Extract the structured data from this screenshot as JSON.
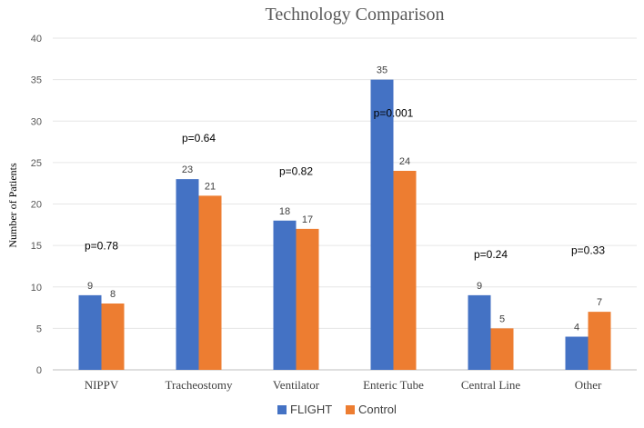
{
  "chart_data": {
    "type": "bar",
    "title": "Technology Comparison",
    "xlabel": "",
    "ylabel": "Number of Patients",
    "ylim": [
      0,
      40
    ],
    "yticks": [
      "0",
      "5",
      "10",
      "15",
      "20",
      "25",
      "30",
      "35",
      "40"
    ],
    "grid": true,
    "legend_position": "bottom",
    "categories": [
      "NIPPV",
      "Tracheostomy",
      "Ventilator",
      "Enteric Tube",
      "Central Line",
      "Other"
    ],
    "series": [
      {
        "name": "FLIGHT",
        "color": "#4472C4",
        "values": [
          9,
          23,
          18,
          35,
          9,
          4
        ],
        "labels": [
          "9",
          "23",
          "18",
          "35",
          "9",
          "4"
        ]
      },
      {
        "name": "Control",
        "color": "#ED7D31",
        "values": [
          8,
          21,
          17,
          24,
          5,
          7
        ],
        "labels": [
          "8",
          "21",
          "17",
          "24",
          "5",
          "7"
        ]
      }
    ],
    "annotations": [
      {
        "text": "p=0.78",
        "category": "NIPPV",
        "y": 14.5
      },
      {
        "text": "p=0.64",
        "category": "Tracheostomy",
        "y": 27.5
      },
      {
        "text": "p=0.82",
        "category": "Ventilator",
        "y": 23.5
      },
      {
        "text": "p=0.001",
        "category": "Enteric Tube",
        "y": 30.5
      },
      {
        "text": "p=0.24",
        "category": "Central Line",
        "y": 13.5
      },
      {
        "text": "p=0.33",
        "category": "Other",
        "y": 14
      }
    ]
  }
}
